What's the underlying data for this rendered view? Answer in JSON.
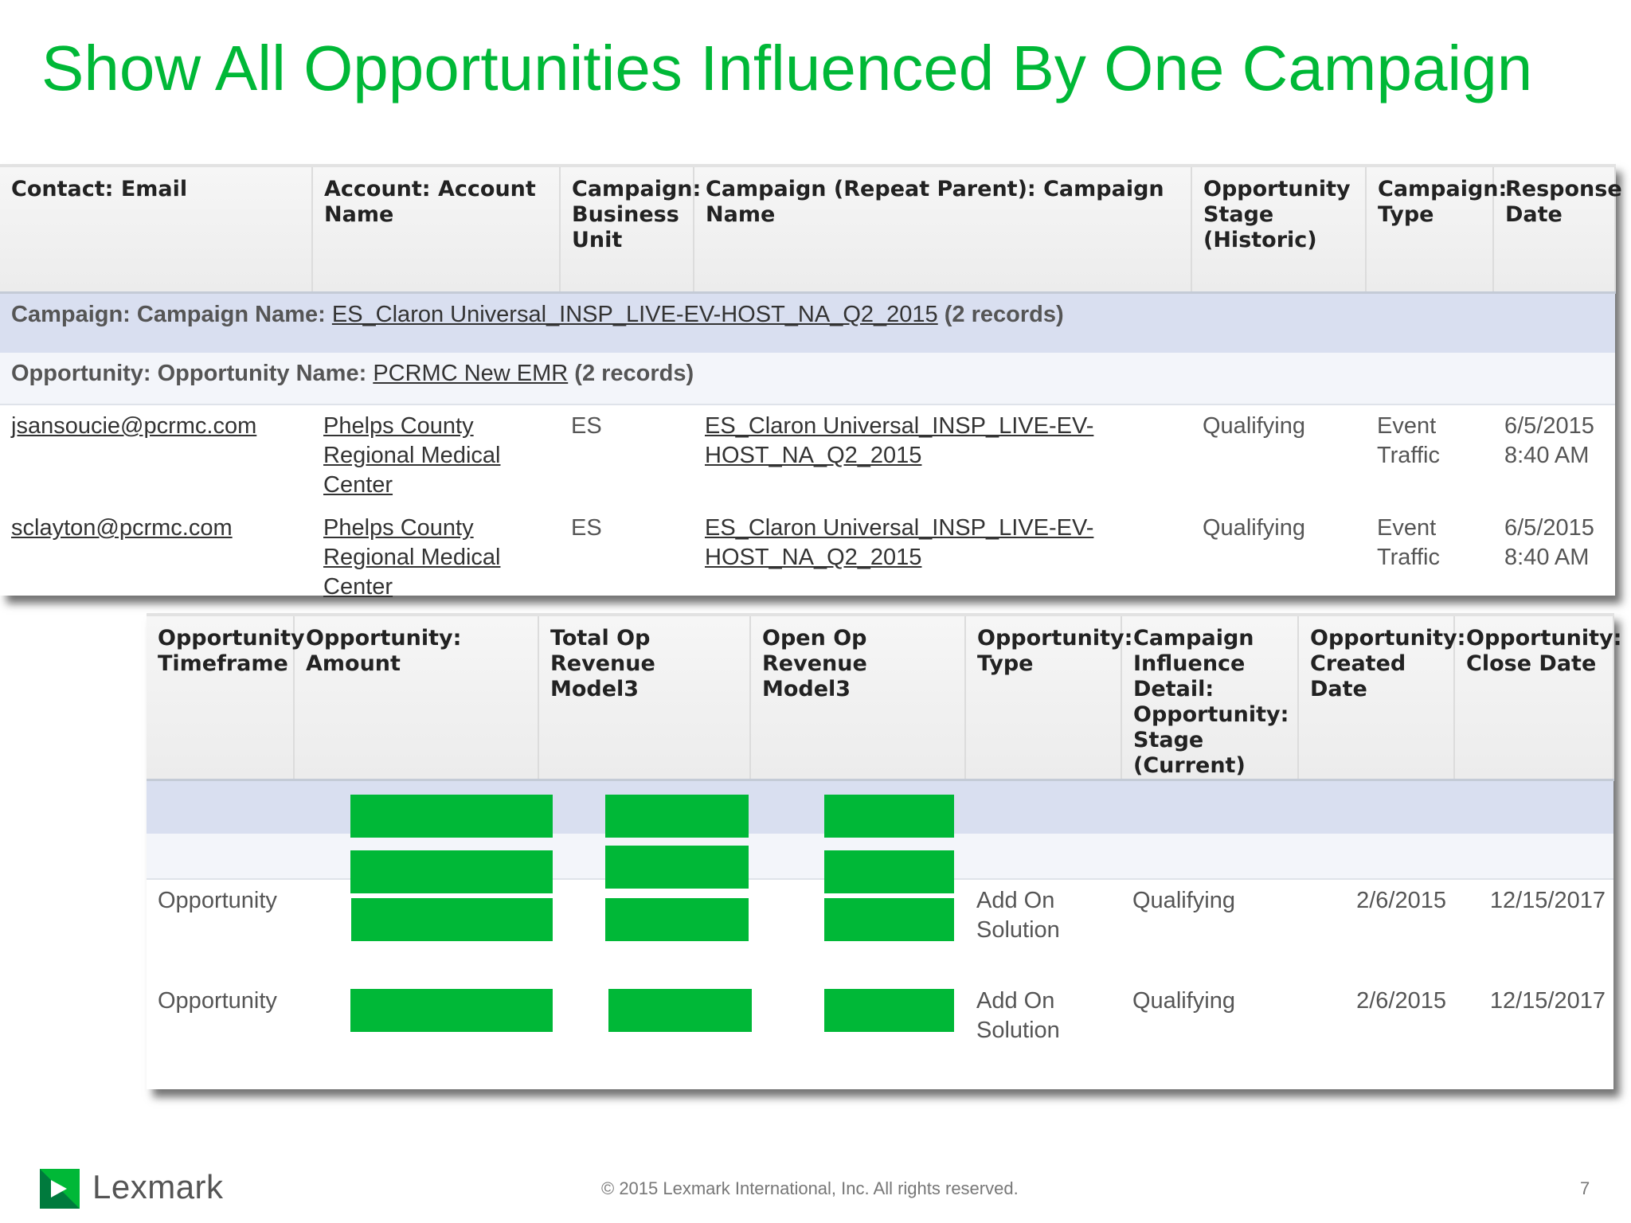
{
  "slide": {
    "title": "Show All Opportunities Influenced By One Campaign"
  },
  "report_top": {
    "columns": [
      "Contact: Email",
      "Account: Account Name",
      "Campaign: Business Unit",
      "Campaign (Repeat Parent): Campaign Name",
      "Opportunity Stage (Historic)",
      "Campaign: Type",
      "Response Date"
    ],
    "group1": {
      "label": "Campaign: Campaign Name:",
      "link": "ES_Claron Universal_INSP_LIVE-EV-HOST_NA_Q2_2015",
      "count": "(2 records)"
    },
    "group2": {
      "label": "Opportunity: Opportunity Name:",
      "link": "PCRMC New EMR",
      "count": "(2 records)"
    },
    "rows": [
      {
        "email": "jsansoucie@pcrmc.com",
        "account": "Phelps County Regional Medical Center",
        "business_unit": "ES",
        "campaign_name": "ES_Claron Universal_INSP_LIVE-EV-HOST_NA_Q2_2015",
        "stage_historic": "Qualifying",
        "campaign_type": "Event Traffic",
        "response_date": "6/5/2015 8:40 AM"
      },
      {
        "email": "sclayton@pcrmc.com",
        "account": "Phelps County Regional Medical Center",
        "business_unit": "ES",
        "campaign_name": "ES_Claron Universal_INSP_LIVE-EV-HOST_NA_Q2_2015",
        "stage_historic": "Qualifying",
        "campaign_type": "Event Traffic",
        "response_date": "6/5/2015 8:40 AM"
      }
    ]
  },
  "report_bottom": {
    "columns": [
      "Opportunity Timeframe",
      "Opportunity: Amount",
      "Total Op Revenue Model3",
      "Open Op Revenue Model3",
      "Opportunity: Type",
      "Campaign Influence Detail: Opportunity: Stage (Current)",
      "Opportunity: Created Date",
      "Opportunity: Close Date"
    ],
    "rows": [
      {
        "timeframe": "Opportunity",
        "type": "Add On Solution",
        "stage_current": "Qualifying",
        "created_date": "2/6/2015",
        "close_date": "12/15/2017"
      },
      {
        "timeframe": "Opportunity",
        "type": "Add On Solution",
        "stage_current": "Qualifying",
        "created_date": "2/6/2015",
        "close_date": "12/15/2017"
      }
    ],
    "redaction_color": "#00b837"
  },
  "footer": {
    "brand": "Lexmark",
    "copyright": "© 2015 Lexmark International, Inc. All rights reserved.",
    "page_number": "7"
  },
  "colors": {
    "accent": "#00b837",
    "group_band": "#d9dff0",
    "subgroup_band": "#f3f5fa"
  }
}
